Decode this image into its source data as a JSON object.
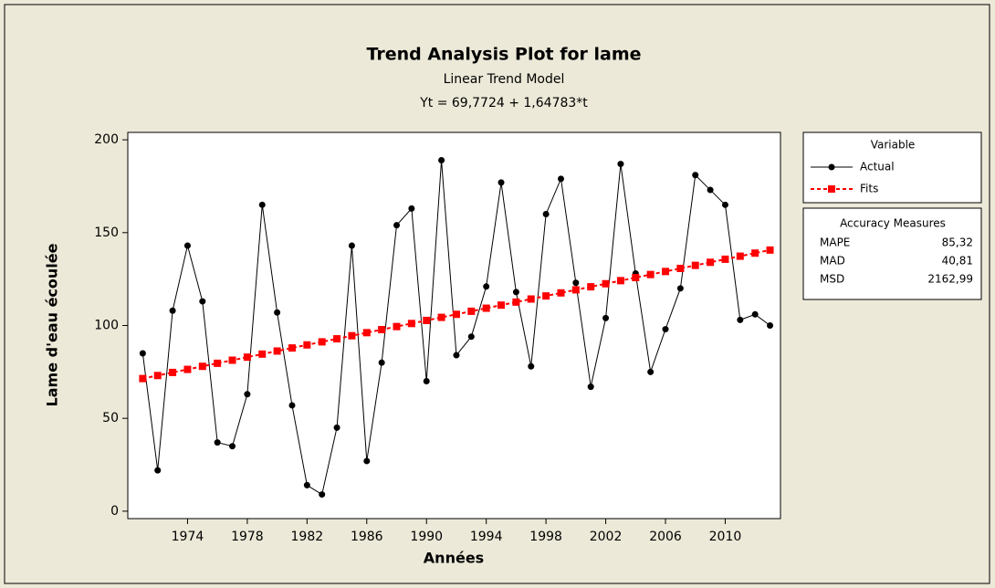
{
  "chart_data": {
    "type": "line",
    "title": "Trend Analysis Plot for lame",
    "subtitle": "Linear Trend Model",
    "equation": "Yt = 69,7724 + 1,64783*t",
    "x_label": "Années",
    "y_label": "Lame d'eau écoulée",
    "x": [
      1971,
      1972,
      1973,
      1974,
      1975,
      1976,
      1977,
      1978,
      1979,
      1980,
      1981,
      1982,
      1983,
      1984,
      1985,
      1986,
      1987,
      1988,
      1989,
      1990,
      1991,
      1992,
      1993,
      1994,
      1995,
      1996,
      1997,
      1998,
      1999,
      2000,
      2001,
      2002,
      2003,
      2004,
      2005,
      2006,
      2007,
      2008,
      2009,
      2010,
      2011,
      2012,
      2013
    ],
    "xlim": [
      1970,
      2013.7
    ],
    "xticks": [
      1974,
      1978,
      1982,
      1986,
      1990,
      1994,
      1998,
      2002,
      2006,
      2010
    ],
    "ylim": [
      -4,
      204
    ],
    "yticks": [
      0,
      50,
      100,
      150,
      200
    ],
    "legend_title": "Variable",
    "series": [
      {
        "name": "Actual",
        "color": "#000000",
        "marker": "circle",
        "values": [
          85,
          22,
          108,
          143,
          113,
          37,
          35,
          63,
          165,
          107,
          57,
          14,
          9,
          45,
          143,
          27,
          80,
          154,
          163,
          70,
          189,
          84,
          94,
          121,
          177,
          118,
          78,
          160,
          179,
          123,
          67,
          104,
          187,
          128,
          75,
          98,
          120,
          181,
          173,
          165,
          103,
          106,
          100
        ]
      },
      {
        "name": "Fits",
        "color": "#ff0000",
        "marker": "square",
        "dashed": true,
        "values": [
          71.42,
          73.07,
          74.72,
          76.36,
          78.01,
          79.66,
          81.31,
          82.95,
          84.6,
          86.25,
          87.9,
          89.55,
          91.19,
          92.84,
          94.49,
          96.14,
          97.78,
          99.43,
          101.08,
          102.73,
          104.38,
          106.02,
          107.67,
          109.32,
          110.97,
          112.61,
          114.26,
          115.91,
          117.56,
          119.21,
          120.85,
          122.5,
          124.15,
          125.8,
          127.45,
          129.09,
          130.74,
          132.39,
          134.04,
          135.69,
          137.33,
          138.98,
          140.63
        ]
      }
    ],
    "accuracy_measures": {
      "title": "Accuracy Measures",
      "rows": [
        [
          "MAPE",
          "85,32"
        ],
        [
          "MAD",
          "40,81"
        ],
        [
          "MSD",
          "2162,99"
        ]
      ]
    }
  }
}
